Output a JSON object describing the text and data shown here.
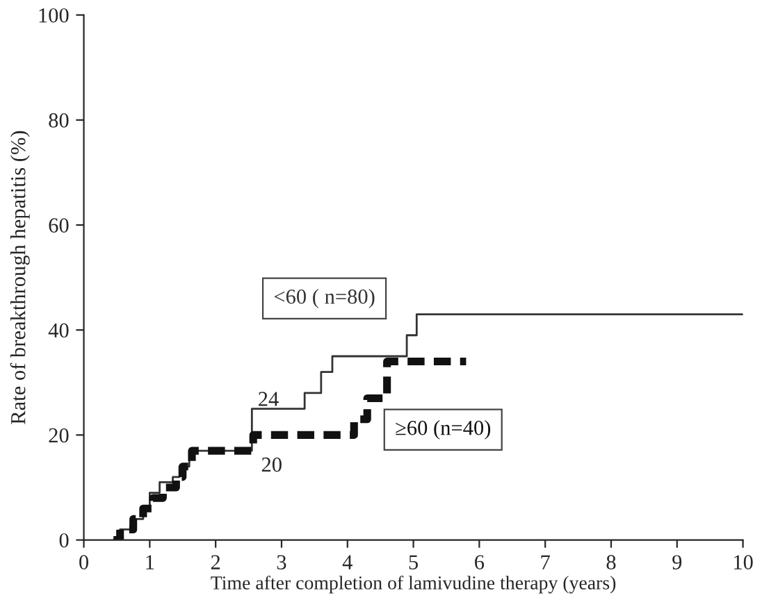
{
  "chart_data": {
    "type": "step",
    "xlabel": "Time after completion of lamivudine therapy (years)",
    "ylabel": "Rate of breakthrough hepatitis (%)",
    "xlim": [
      0,
      10
    ],
    "ylim": [
      0,
      100
    ],
    "xticks": [
      0,
      1,
      2,
      3,
      4,
      5,
      6,
      7,
      8,
      9,
      10
    ],
    "yticks": [
      0,
      20,
      40,
      60,
      80,
      100
    ],
    "grid": false,
    "legend": false,
    "marker": "none",
    "series": [
      {
        "name": "<60 ( n=80)",
        "color": "#333333",
        "line_style": "solid",
        "x": [
          0.45,
          0.55,
          0.75,
          0.9,
          1.0,
          1.15,
          1.35,
          1.45,
          1.6,
          2.55,
          3.35,
          3.6,
          3.77,
          4.0,
          4.9,
          5.05,
          10.0
        ],
        "values": [
          0,
          2,
          4,
          6,
          9,
          11,
          12,
          14,
          17,
          25,
          28,
          32,
          35,
          35,
          39,
          43,
          43
        ]
      },
      {
        "name": "≥60 (n=40)",
        "color": "#111111",
        "line_style": "dashed",
        "x": [
          0.45,
          0.55,
          0.75,
          0.9,
          1.05,
          1.2,
          1.4,
          1.5,
          1.64,
          2.57,
          4.1,
          4.3,
          4.6,
          5.8
        ],
        "values": [
          0,
          2,
          4,
          6,
          8,
          10,
          12,
          14,
          17,
          20,
          23,
          27,
          34,
          34
        ]
      }
    ],
    "annotations": [
      "24",
      "20"
    ]
  }
}
